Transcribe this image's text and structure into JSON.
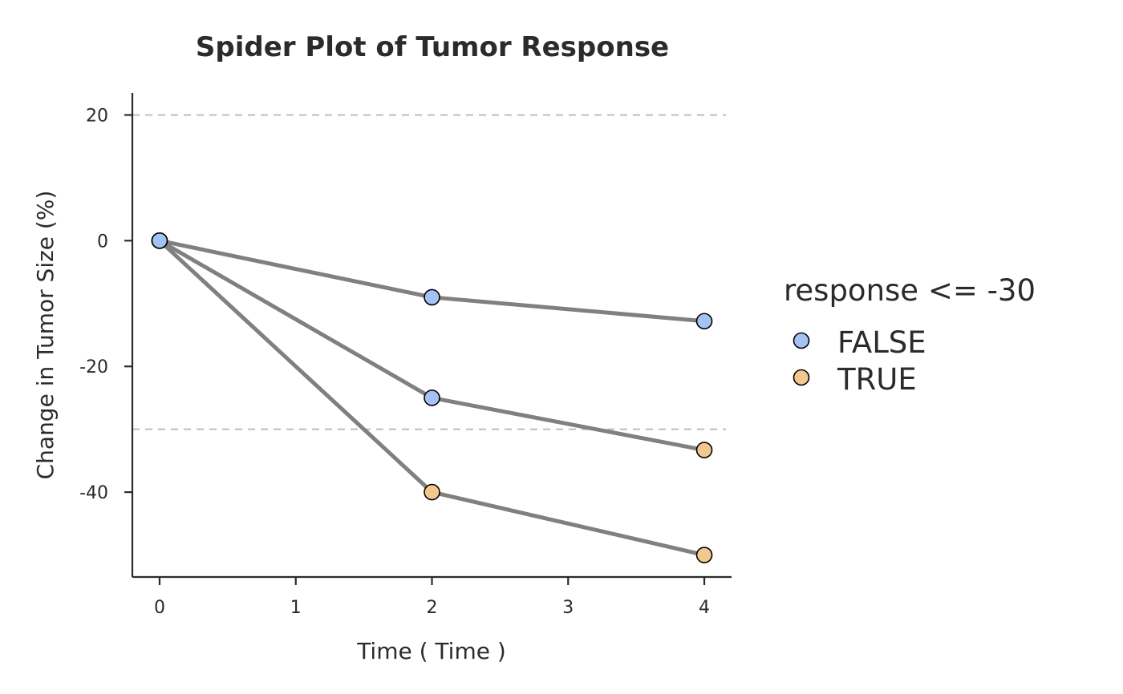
{
  "chart_data": {
    "type": "line",
    "title": "Spider Plot of Tumor Response",
    "xlabel": "Time ( Time )",
    "ylabel": "Change in Tumor Size (%)",
    "xlim": [
      -0.2,
      4.2
    ],
    "ylim": [
      -53.5,
      23.5
    ],
    "x_ticks": [
      0,
      1,
      2,
      3,
      4
    ],
    "x_tick_labels": [
      "0",
      "1",
      "2",
      "3",
      "4"
    ],
    "y_ticks": [
      20,
      0,
      -20,
      -40
    ],
    "y_tick_labels": [
      "20",
      "0",
      "-20",
      "-40"
    ],
    "reference_lines": [
      20,
      -30
    ],
    "grid": false,
    "legend": {
      "title": "response <= -30",
      "placement": "right",
      "entries": [
        {
          "label": "FALSE",
          "color": "#a4c2f4"
        },
        {
          "label": "TRUE",
          "color": "#f2c88e"
        }
      ]
    },
    "line_color": "#808080",
    "series": [
      {
        "x": [
          0,
          2,
          4
        ],
        "values": [
          0,
          -9,
          -12.8
        ],
        "response": [
          false,
          false,
          false
        ]
      },
      {
        "x": [
          0,
          2,
          4
        ],
        "values": [
          0,
          -25,
          -33.3
        ],
        "response": [
          false,
          false,
          true
        ]
      },
      {
        "x": [
          0,
          2,
          4
        ],
        "values": [
          0,
          -40,
          -50
        ],
        "response": [
          false,
          true,
          true
        ]
      }
    ]
  }
}
